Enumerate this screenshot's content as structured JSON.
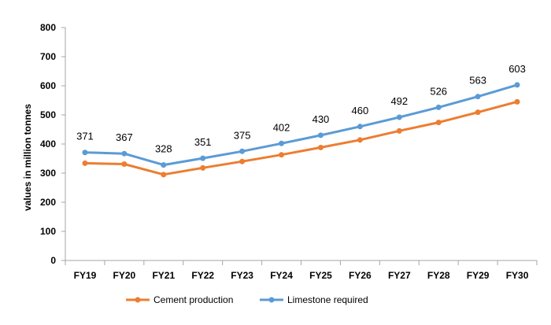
{
  "chart_data": {
    "type": "line",
    "categories": [
      "FY19",
      "FY20",
      "FY21",
      "FY22",
      "FY23",
      "FY24",
      "FY25",
      "FY26",
      "FY27",
      "FY28",
      "FY29",
      "FY30"
    ],
    "series": [
      {
        "name": "Cement production",
        "color": "#ED7D31",
        "values": [
          334,
          331,
          295,
          318,
          340,
          363,
          388,
          414,
          445,
          474,
          509,
          545
        ],
        "show_labels": false
      },
      {
        "name": "Limestone required",
        "color": "#5B9BD5",
        "values": [
          371,
          367,
          328,
          351,
          375,
          402,
          430,
          460,
          492,
          526,
          563,
          603
        ],
        "show_labels": true
      }
    ],
    "title": "",
    "xlabel": "",
    "ylabel": "values in million tonnes",
    "ylim": [
      0,
      800
    ],
    "yticks": [
      0,
      100,
      200,
      300,
      400,
      500,
      600,
      700,
      800
    ],
    "grid": false,
    "legend": "bottom"
  }
}
